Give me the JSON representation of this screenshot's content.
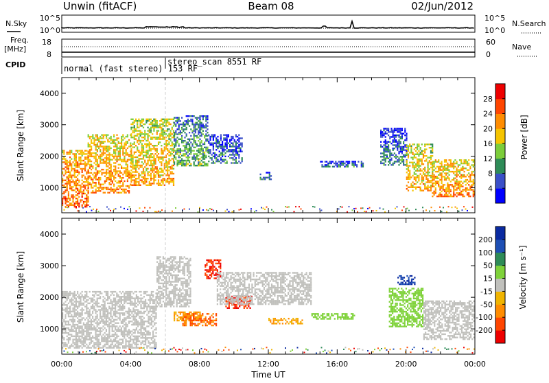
{
  "header": {
    "station": "Unwin (fitACF)",
    "beam": "Beam 08",
    "date": "02/Jun/2012"
  },
  "top_panels": {
    "nsky_label": "N.Sky",
    "nsearch_label": "N.Search",
    "nsky_ticks": [
      "10^5",
      "10^0"
    ],
    "nsearch_ticks": [
      "10^5",
      "10^0"
    ],
    "freq_label_1": "Freq.",
    "freq_label_2": "[MHz]",
    "freq_ticks": [
      "18",
      "8"
    ],
    "nave_label": "Nave",
    "nave_ticks": [
      "60",
      "0"
    ],
    "cpid_label": "CPID",
    "cpid_modes": [
      {
        "name": "normal (fast stereo) 153 RF",
        "start_hour": 0
      },
      {
        "name": "stereo_scan 8551 RF",
        "start_hour": 6
      }
    ]
  },
  "colors": {
    "power": [
      "#0000ff",
      "#3a4fc8",
      "#2e8b57",
      "#7ccd3a",
      "#f5c400",
      "#ff8c00",
      "#ff4500",
      "#ee0000"
    ],
    "velocity": [
      "#ee0000",
      "#ff4500",
      "#ff8c00",
      "#f0b400",
      "#c0c0bc",
      "#7fd23a",
      "#2e8b57",
      "#1e4fb4",
      "#0a2aa0"
    ],
    "velocity_ground": "#c0c0bc"
  },
  "chart_data": [
    {
      "type": "heatmap",
      "name": "power",
      "xlabel": "",
      "ylabel": "Slant Range [km]",
      "x_unit": "hours UT",
      "xlim": [
        0,
        24
      ],
      "ylim": [
        200,
        4500
      ],
      "yticks": [
        "1000",
        "2000",
        "3000",
        "4000"
      ],
      "colorbar": {
        "label": "Power [dB]",
        "ticks": [
          "4",
          "8",
          "12",
          "16",
          "20",
          "24",
          "28"
        ],
        "range": [
          0,
          32
        ]
      },
      "regions": [
        {
          "t0": 0.0,
          "t1": 1.5,
          "r0": 380,
          "r1": 2200,
          "level": 24
        },
        {
          "t0": 1.5,
          "t1": 4.0,
          "r0": 850,
          "r1": 2700,
          "level": 22
        },
        {
          "t0": 4.0,
          "t1": 6.5,
          "r0": 1100,
          "r1": 3200,
          "level": 20
        },
        {
          "t0": 6.5,
          "t1": 8.5,
          "r0": 1700,
          "r1": 3300,
          "level": 12
        },
        {
          "t0": 8.5,
          "t1": 10.5,
          "r0": 1800,
          "r1": 2700,
          "level": 8
        },
        {
          "t0": 11.5,
          "t1": 12.2,
          "r0": 1250,
          "r1": 1500,
          "level": 10
        },
        {
          "t0": 15.0,
          "t1": 17.5,
          "r0": 1650,
          "r1": 1850,
          "level": 8
        },
        {
          "t0": 18.5,
          "t1": 20.0,
          "r0": 1700,
          "r1": 2900,
          "level": 8
        },
        {
          "t0": 20.0,
          "t1": 21.5,
          "r0": 900,
          "r1": 2400,
          "level": 20
        },
        {
          "t0": 21.5,
          "t1": 24.0,
          "r0": 700,
          "r1": 1900,
          "level": 22
        }
      ]
    },
    {
      "type": "heatmap",
      "name": "velocity",
      "xlabel": "Time UT",
      "ylabel": "Slant Range [km]",
      "x_unit": "hours UT",
      "xlim": [
        0,
        24
      ],
      "ylim": [
        200,
        4500
      ],
      "xticks": [
        "00:00",
        "04:00",
        "08:00",
        "12:00",
        "16:00",
        "20:00",
        "00:00"
      ],
      "yticks": [
        "1000",
        "2000",
        "3000",
        "4000"
      ],
      "colorbar": {
        "label": "Velocity [m s^-1]",
        "ticks": [
          "200",
          "100",
          "50",
          "15",
          "-15",
          "-50",
          "-100",
          "-200"
        ]
      },
      "regions": [
        {
          "t0": 0.0,
          "t1": 5.5,
          "r0": 380,
          "r1": 2200,
          "v": 0
        },
        {
          "t0": 5.5,
          "t1": 7.5,
          "r0": 1700,
          "r1": 3300,
          "v": 0
        },
        {
          "t0": 8.3,
          "t1": 9.2,
          "r0": 2600,
          "r1": 3200,
          "v": -200
        },
        {
          "t0": 9.5,
          "t1": 11.0,
          "r0": 1650,
          "r1": 2050,
          "v": -200
        },
        {
          "t0": 6.5,
          "t1": 8.0,
          "r0": 1250,
          "r1": 1550,
          "v": -50
        },
        {
          "t0": 7.0,
          "t1": 9.0,
          "r0": 1100,
          "r1": 1500,
          "v": -100
        },
        {
          "t0": 9.0,
          "t1": 14.5,
          "r0": 1800,
          "r1": 2800,
          "v": 0
        },
        {
          "t0": 12.0,
          "t1": 14.0,
          "r0": 1150,
          "r1": 1350,
          "v": -50
        },
        {
          "t0": 14.5,
          "t1": 17.0,
          "r0": 1300,
          "r1": 1500,
          "v": 30
        },
        {
          "t0": 19.0,
          "t1": 21.0,
          "r0": 1100,
          "r1": 2300,
          "v": 30
        },
        {
          "t0": 19.5,
          "t1": 20.5,
          "r0": 2400,
          "r1": 2700,
          "v": 200
        },
        {
          "t0": 21.0,
          "t1": 24.0,
          "r0": 700,
          "r1": 1900,
          "v": 0
        }
      ]
    }
  ]
}
